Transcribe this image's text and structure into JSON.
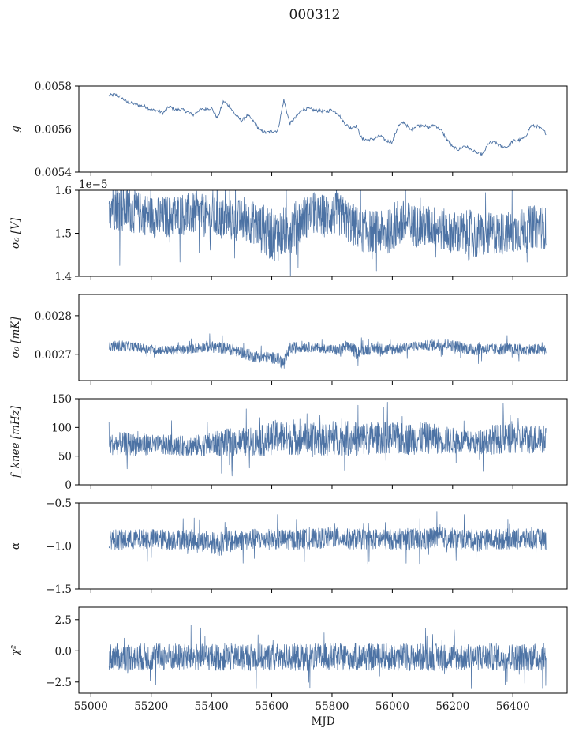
{
  "figure": {
    "title": "000312"
  },
  "colors": {
    "series": "#4c72a4",
    "axes": "#000000",
    "background": "#ffffff"
  },
  "chart_data": [
    {
      "type": "line",
      "id": "g",
      "ylabel": "g",
      "ylim": [
        0.0054,
        0.0058
      ],
      "yticks": [
        0.0054,
        0.0056,
        0.0058
      ],
      "ytick_labels": [
        "0.0054",
        "0.0056",
        "0.0058"
      ],
      "xlabel": "",
      "xlim": [
        54960,
        56580
      ],
      "series": [
        {
          "style": "thin",
          "x": [
            55060,
            55080,
            55100,
            55120,
            55140,
            55160,
            55180,
            55200,
            55220,
            55240,
            55260,
            55280,
            55300,
            55320,
            55340,
            55360,
            55380,
            55400,
            55420,
            55440,
            55460,
            55480,
            55500,
            55520,
            55540,
            55560,
            55580,
            55600,
            55620,
            55640,
            55660,
            55680,
            55700,
            55720,
            55740,
            55760,
            55780,
            55800,
            55820,
            55840,
            55860,
            55880,
            55900,
            55920,
            55940,
            55960,
            55980,
            56000,
            56020,
            56040,
            56060,
            56080,
            56100,
            56120,
            56140,
            56160,
            56180,
            56200,
            56220,
            56240,
            56260,
            56280,
            56300,
            56320,
            56340,
            56360,
            56380,
            56400,
            56420,
            56440,
            56460,
            56480,
            56500,
            56510
          ],
          "y": [
            0.005756,
            0.00576,
            0.005748,
            0.005725,
            0.005718,
            0.00571,
            0.005705,
            0.00569,
            0.005685,
            0.005675,
            0.005705,
            0.00569,
            0.005692,
            0.00568,
            0.005665,
            0.00569,
            0.005692,
            0.005698,
            0.00565,
            0.00573,
            0.005705,
            0.005665,
            0.005638,
            0.005665,
            0.005635,
            0.005595,
            0.005583,
            0.00559,
            0.005592,
            0.005735,
            0.005625,
            0.005655,
            0.00569,
            0.005695,
            0.005688,
            0.005685,
            0.00568,
            0.00569,
            0.005672,
            0.00563,
            0.005605,
            0.005615,
            0.005553,
            0.00555,
            0.005555,
            0.00557,
            0.005545,
            0.00554,
            0.005615,
            0.005632,
            0.005595,
            0.005615,
            0.00562,
            0.005605,
            0.00562,
            0.005598,
            0.005555,
            0.005515,
            0.005505,
            0.005523,
            0.005505,
            0.005488,
            0.005483,
            0.005535,
            0.005538,
            0.00552,
            0.005515,
            0.005545,
            0.005548,
            0.00556,
            0.005615,
            0.005613,
            0.005595,
            0.00558
          ]
        }
      ]
    },
    {
      "type": "line",
      "id": "sigma0_v",
      "ylabel": "σ₀ [V]",
      "ylim": [
        1.4e-05,
        1.6e-05
      ],
      "yticks": [
        1.4e-05,
        1.5e-05,
        1.6e-05
      ],
      "ytick_labels": [
        "1.4",
        "1.5",
        "1.6"
      ],
      "offset_text": "1e−5",
      "xlabel": "",
      "xlim": [
        54960,
        56580
      ],
      "series": [
        {
          "style": "band",
          "x": [
            55060,
            55100,
            55140,
            55180,
            55220,
            55260,
            55300,
            55340,
            55380,
            55420,
            55460,
            55500,
            55540,
            55580,
            55620,
            55660,
            55700,
            55740,
            55780,
            55820,
            55860,
            55900,
            55940,
            55980,
            56020,
            56060,
            56100,
            56140,
            56180,
            56220,
            56260,
            56300,
            56340,
            56380,
            56420,
            56460,
            56500,
            56510
          ],
          "y": [
            1.57e-05,
            1.565e-05,
            1.55e-05,
            1.545e-05,
            1.535e-05,
            1.54e-05,
            1.545e-05,
            1.545e-05,
            1.54e-05,
            1.535e-05,
            1.53e-05,
            1.53e-05,
            1.525e-05,
            1.5e-05,
            1.495e-05,
            1.51e-05,
            1.535e-05,
            1.545e-05,
            1.54e-05,
            1.545e-05,
            1.525e-05,
            1.505e-05,
            1.505e-05,
            1.5e-05,
            1.525e-05,
            1.52e-05,
            1.515e-05,
            1.515e-05,
            1.505e-05,
            1.5e-05,
            1.495e-05,
            1.495e-05,
            1.5e-05,
            1.5e-05,
            1.505e-05,
            1.515e-05,
            1.515e-05,
            1.51e-05
          ],
          "spread": [
            6e-07,
            6e-07,
            5e-07,
            5e-07,
            5e-07,
            5e-07,
            5e-07,
            5e-07,
            5e-07,
            5e-07,
            5e-07,
            5e-07,
            5e-07,
            6e-07,
            6e-07,
            6e-07,
            5e-07,
            5e-07,
            5e-07,
            5e-07,
            5e-07,
            5e-07,
            5e-07,
            5e-07,
            6e-07,
            5e-07,
            5e-07,
            5e-07,
            5e-07,
            5e-07,
            6e-07,
            5e-07,
            5e-07,
            5e-07,
            5e-07,
            5e-07,
            5e-07,
            5e-07
          ]
        }
      ]
    },
    {
      "type": "line",
      "id": "sigma0_mk",
      "ylabel": "σ₀ [mK]",
      "ylim": [
        0.002632,
        0.002855
      ],
      "yticks": [
        0.0027,
        0.0028
      ],
      "ytick_labels": [
        "0.0027",
        "0.0028"
      ],
      "xlabel": "",
      "xlim": [
        54960,
        56580
      ],
      "series": [
        {
          "style": "band",
          "x": [
            55060,
            55100,
            55140,
            55180,
            55220,
            55260,
            55300,
            55340,
            55380,
            55420,
            55460,
            55500,
            55540,
            55580,
            55620,
            55640,
            55660,
            55700,
            55740,
            55780,
            55820,
            55860,
            55880,
            55900,
            55940,
            55980,
            56020,
            56060,
            56100,
            56140,
            56180,
            56220,
            56260,
            56280,
            56300,
            56340,
            56380,
            56420,
            56460,
            56500,
            56510
          ],
          "y": [
            0.00272,
            0.002722,
            0.00272,
            0.002715,
            0.002712,
            0.00271,
            0.002712,
            0.002715,
            0.00272,
            0.002718,
            0.002715,
            0.002705,
            0.002695,
            0.002692,
            0.00269,
            0.002675,
            0.002715,
            0.00272,
            0.002718,
            0.002715,
            0.00271,
            0.00272,
            0.002705,
            0.002712,
            0.002715,
            0.002712,
            0.002715,
            0.00272,
            0.002722,
            0.002725,
            0.002725,
            0.00272,
            0.002712,
            0.002715,
            0.002715,
            0.002712,
            0.002715,
            0.002712,
            0.002712,
            0.002712,
            0.00271
          ],
          "spread": [
            1.2e-05,
            1.5e-05,
            1.2e-05,
            1.2e-05,
            1.2e-05,
            1.2e-05,
            1.2e-05,
            1.2e-05,
            1.5e-05,
            1.5e-05,
            1.5e-05,
            1.5e-05,
            1.5e-05,
            1.5e-05,
            1.5e-05,
            2e-05,
            1.5e-05,
            1.5e-05,
            1.2e-05,
            1.2e-05,
            1.5e-05,
            1.5e-05,
            1.8e-05,
            1.5e-05,
            1.5e-05,
            1.5e-05,
            1.5e-05,
            1.2e-05,
            1.2e-05,
            1.5e-05,
            1.5e-05,
            1.5e-05,
            1.5e-05,
            1.8e-05,
            1.5e-05,
            1.5e-05,
            1.5e-05,
            1.5e-05,
            1.5e-05,
            1.5e-05,
            1.2e-05
          ]
        }
      ]
    },
    {
      "type": "line",
      "id": "fknee",
      "ylabel": "f_knee [mHz]",
      "ylim": [
        0,
        150
      ],
      "yticks": [
        0,
        50,
        100,
        150
      ],
      "ytick_labels": [
        "0",
        "50",
        "100",
        "150"
      ],
      "xlabel": "",
      "xlim": [
        54960,
        56580
      ],
      "series": [
        {
          "style": "band",
          "x": [
            55060,
            55100,
            55140,
            55180,
            55220,
            55260,
            55300,
            55340,
            55380,
            55420,
            55460,
            55500,
            55540,
            55580,
            55620,
            55660,
            55700,
            55740,
            55780,
            55820,
            55860,
            55900,
            55940,
            55980,
            56020,
            56060,
            56100,
            56140,
            56180,
            56220,
            56260,
            56280,
            56300,
            56320,
            56340,
            56380,
            56420,
            56460,
            56500,
            56510
          ],
          "y": [
            70,
            72,
            70,
            70,
            68,
            70,
            68,
            68,
            70,
            72,
            74,
            75,
            75,
            78,
            85,
            80,
            80,
            80,
            78,
            82,
            80,
            80,
            82,
            82,
            80,
            80,
            82,
            80,
            78,
            76,
            74,
            72,
            78,
            78,
            80,
            80,
            80,
            80,
            80,
            78
          ],
          "spread": [
            18,
            20,
            20,
            20,
            18,
            18,
            18,
            18,
            20,
            22,
            25,
            25,
            25,
            28,
            30,
            28,
            28,
            28,
            28,
            30,
            30,
            30,
            28,
            28,
            28,
            28,
            28,
            26,
            24,
            22,
            20,
            20,
            24,
            26,
            26,
            26,
            26,
            26,
            26,
            22
          ]
        }
      ]
    },
    {
      "type": "line",
      "id": "alpha",
      "ylabel": "α",
      "ylim": [
        -1.5,
        -0.5
      ],
      "yticks": [
        -1.5,
        -1.0,
        -0.5
      ],
      "ytick_labels": [
        "−1.5",
        "−1.0",
        "−0.5"
      ],
      "xlabel": "",
      "xlim": [
        54960,
        56580
      ],
      "series": [
        {
          "style": "band",
          "x": [
            55060,
            55100,
            55140,
            55180,
            55220,
            55260,
            55300,
            55340,
            55380,
            55420,
            55460,
            55500,
            55540,
            55580,
            55620,
            55660,
            55700,
            55740,
            55780,
            55820,
            55860,
            55900,
            55940,
            55980,
            56020,
            56060,
            56100,
            56140,
            56180,
            56220,
            56260,
            56280,
            56300,
            56320,
            56340,
            56380,
            56420,
            56460,
            56500,
            56510
          ],
          "y": [
            -0.92,
            -0.93,
            -0.93,
            -0.92,
            -0.92,
            -0.93,
            -0.92,
            -0.93,
            -0.95,
            -0.98,
            -0.95,
            -0.93,
            -0.92,
            -0.92,
            -0.92,
            -0.93,
            -0.92,
            -0.92,
            -0.9,
            -0.9,
            -0.92,
            -0.92,
            -0.92,
            -0.93,
            -0.92,
            -0.92,
            -0.93,
            -0.9,
            -0.9,
            -0.92,
            -0.92,
            -0.94,
            -0.92,
            -0.92,
            -0.92,
            -0.92,
            -0.92,
            -0.92,
            -0.92,
            -0.93
          ],
          "spread": [
            0.12,
            0.12,
            0.12,
            0.12,
            0.12,
            0.12,
            0.12,
            0.12,
            0.12,
            0.14,
            0.13,
            0.12,
            0.12,
            0.12,
            0.12,
            0.12,
            0.12,
            0.12,
            0.12,
            0.12,
            0.12,
            0.12,
            0.12,
            0.12,
            0.12,
            0.13,
            0.13,
            0.13,
            0.12,
            0.12,
            0.12,
            0.14,
            0.12,
            0.12,
            0.12,
            0.12,
            0.12,
            0.12,
            0.12,
            0.12
          ]
        }
      ]
    },
    {
      "type": "line",
      "id": "chi2",
      "ylabel": "χ²",
      "ylim": [
        -3.4,
        3.5
      ],
      "yticks": [
        -2.5,
        0.0,
        2.5
      ],
      "ytick_labels": [
        "−2.5",
        "0.0",
        "2.5"
      ],
      "xlabel": "MJD",
      "xlim": [
        54960,
        56580
      ],
      "xticks": [
        55000,
        55200,
        55400,
        55600,
        55800,
        56000,
        56200,
        56400
      ],
      "xtick_labels": [
        "55000",
        "55200",
        "55400",
        "55600",
        "55800",
        "56000",
        "56200",
        "56400"
      ],
      "series": [
        {
          "style": "band",
          "x": [
            55060,
            55100,
            55140,
            55180,
            55220,
            55260,
            55300,
            55340,
            55380,
            55420,
            55460,
            55500,
            55540,
            55580,
            55620,
            55660,
            55700,
            55740,
            55780,
            55820,
            55860,
            55900,
            55940,
            55980,
            56020,
            56060,
            56100,
            56140,
            56180,
            56220,
            56260,
            56280,
            56300,
            56320,
            56340,
            56380,
            56420,
            56460,
            56500,
            56510
          ],
          "y": [
            -0.5,
            -0.5,
            -0.5,
            -0.5,
            -0.5,
            -0.5,
            -0.5,
            -0.5,
            -0.5,
            -0.5,
            -0.5,
            -0.5,
            -0.5,
            -0.5,
            -0.5,
            -0.5,
            -0.5,
            -0.5,
            -0.5,
            -0.5,
            -0.5,
            -0.5,
            -0.5,
            -0.5,
            -0.5,
            -0.5,
            -0.5,
            -0.5,
            -0.5,
            -0.5,
            -0.5,
            -0.6,
            -0.5,
            -0.5,
            -0.5,
            -0.5,
            -0.5,
            -0.5,
            -0.5,
            -0.5
          ],
          "spread": [
            1.1,
            1.1,
            1.1,
            1.1,
            1.1,
            1.1,
            1.1,
            1.1,
            1.1,
            1.1,
            1.1,
            1.1,
            1.1,
            1.1,
            1.1,
            1.1,
            1.1,
            1.1,
            1.1,
            1.1,
            1.1,
            1.1,
            1.1,
            1.1,
            1.1,
            1.1,
            1.1,
            1.1,
            1.1,
            1.1,
            1.1,
            1.0,
            1.1,
            1.1,
            1.1,
            1.1,
            1.1,
            1.1,
            1.1,
            1.1
          ]
        }
      ]
    }
  ]
}
